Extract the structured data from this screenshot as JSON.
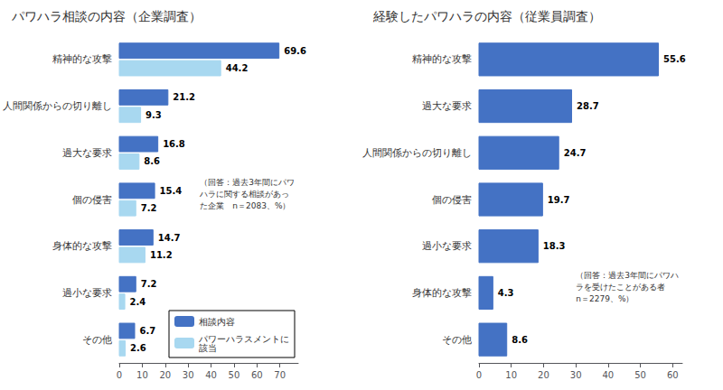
{
  "chart_data": [
    {
      "type": "bar",
      "orientation": "horizontal",
      "title": "パワハラ相談の内容（企業調査）",
      "categories": [
        "精神的な攻撃",
        "人間関係からの切り離し",
        "過大な要求",
        "個の侵害",
        "身体的な攻撃",
        "過小な要求",
        "その他"
      ],
      "series": [
        {
          "name": "相談内容",
          "color": "#4472c4",
          "values": [
            69.6,
            21.2,
            16.8,
            15.4,
            14.7,
            7.2,
            6.7
          ]
        },
        {
          "name": "パワーハラスメントに\n該当",
          "color": "#a8d8f0",
          "values": [
            44.2,
            9.3,
            8.6,
            7.2,
            11.2,
            2.4,
            2.6
          ]
        }
      ],
      "xlim": [
        0,
        78
      ],
      "xticks": [
        0,
        10,
        20,
        30,
        40,
        50,
        60,
        70
      ],
      "grid": false,
      "legend": "lower right",
      "data_labels": true,
      "annotations": [
        "（回答：過去3年間にパワ",
        "ハラに関する相談があっ",
        "た企業　n＝2083、%）"
      ]
    },
    {
      "type": "bar",
      "orientation": "horizontal",
      "title": "経験したパワハラの内容（従業員調査）",
      "categories": [
        "精神的な攻撃",
        "過大な要求",
        "人間関係からの切り離し",
        "個の侵害",
        "過小な要求",
        "身体的な攻撃",
        "その他"
      ],
      "values": [
        55.6,
        28.7,
        24.7,
        19.7,
        18.3,
        4.3,
        8.6
      ],
      "color": "#4472c4",
      "xlim": [
        0,
        63
      ],
      "xticks": [
        0,
        10,
        20,
        30,
        40,
        50,
        60
      ],
      "grid": false,
      "data_labels": true,
      "annotations": [
        "（回答：過去3年間にパワハ",
        "ラを受けたことがある者",
        "n＝2279、%）"
      ]
    }
  ]
}
